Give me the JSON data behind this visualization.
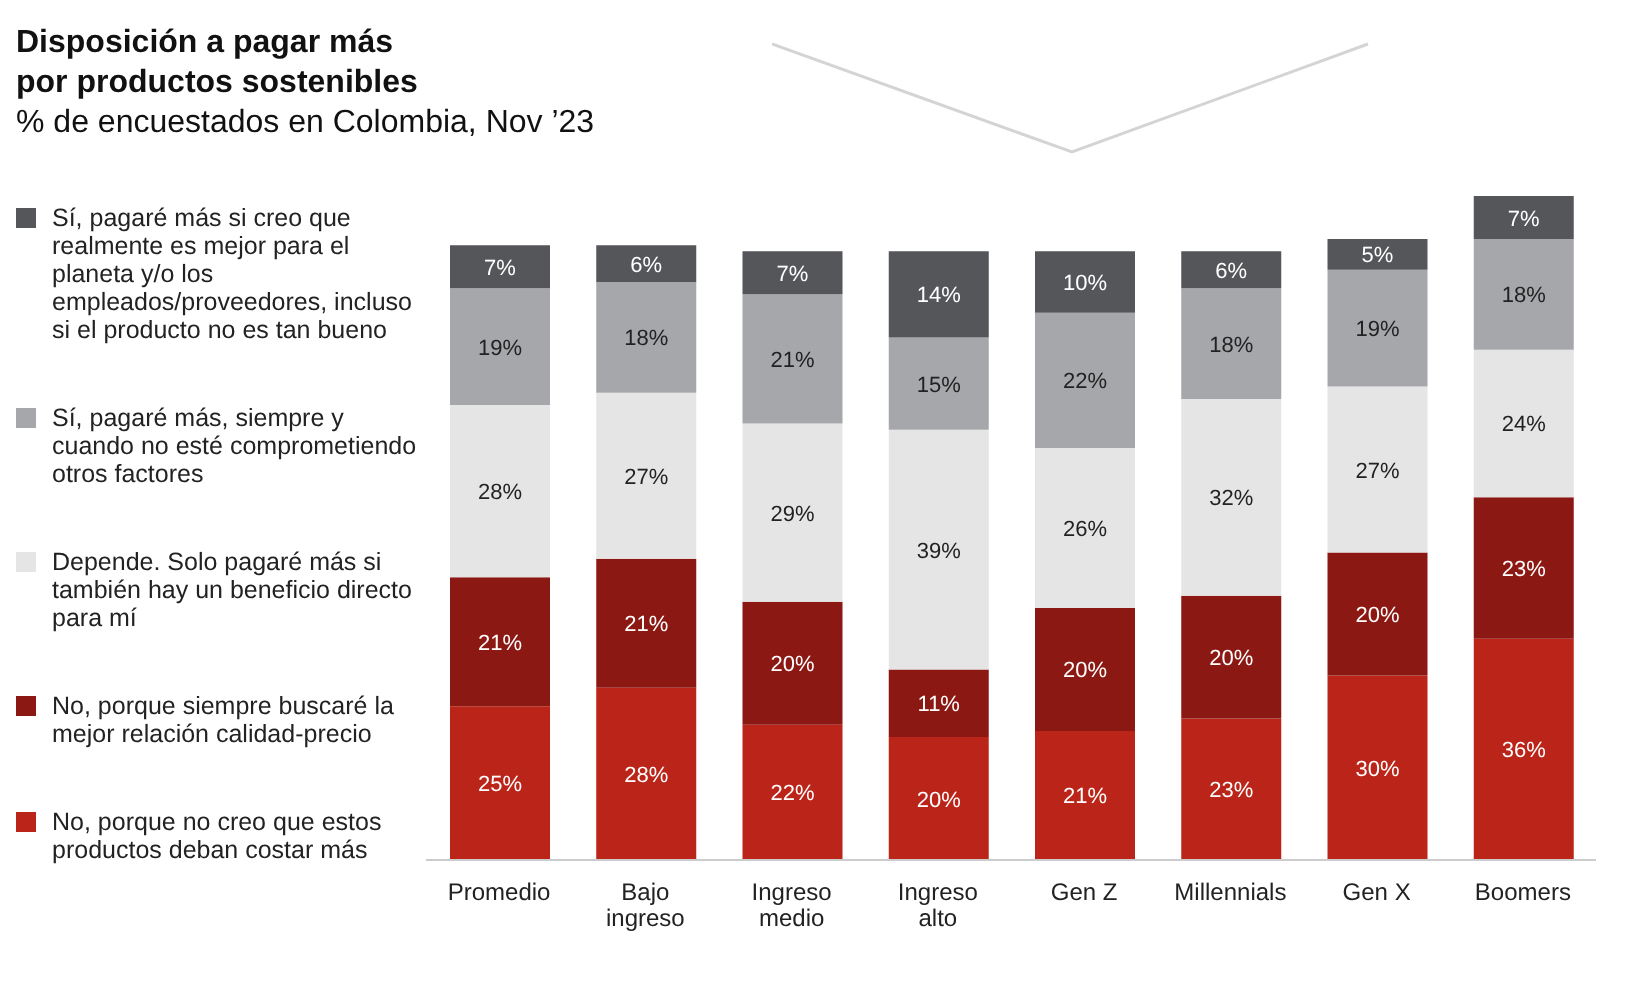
{
  "chart_data": {
    "type": "bar",
    "title": "Disposición a pagar más\npor productos sostenibles",
    "subtitle": "% de encuestados en Colombia, Nov ’23",
    "categories": [
      "Promedio",
      "Bajo ingreso",
      "Ingreso medio",
      "Ingreso alto",
      "Gen Z",
      "Millennials",
      "Gen X",
      "Boomers"
    ],
    "stacked": true,
    "legend": "left",
    "grid": false,
    "series": [
      {
        "name": "No, porque no creo que estos productos deban costar más",
        "color": "#bb2519",
        "values": [
          25,
          28,
          22,
          20,
          21,
          23,
          30,
          36
        ],
        "value_labels": [
          "25%",
          "28%",
          "22%",
          "20%",
          "21%",
          "23%",
          "30%",
          "36%"
        ]
      },
      {
        "name": "No, porque siempre buscaré la mejor relación calidad-precio",
        "color": "#8c1813",
        "values": [
          21,
          21,
          20,
          11,
          20,
          20,
          20,
          23
        ],
        "value_labels": [
          "21%",
          "21%",
          "20%",
          "11%",
          "20%",
          "20%",
          "20%",
          "23%"
        ]
      },
      {
        "name": "Depende. Solo pagaré más si también hay un beneficio directo para mí",
        "color": "#e5e5e5",
        "values": [
          28,
          27,
          29,
          39,
          26,
          32,
          27,
          24
        ],
        "value_labels": [
          "28%",
          "27%",
          "29%",
          "39%",
          "26%",
          "32%",
          "27%",
          "24%"
        ]
      },
      {
        "name": "Sí, pagaré más, siempre y cuando no esté comprometiendo otros factores",
        "color": "#a6a7ab",
        "values": [
          19,
          18,
          21,
          15,
          22,
          18,
          19,
          18
        ],
        "value_labels": [
          "19%",
          "18%",
          "21%",
          "15%",
          "22%",
          "18%",
          "19%",
          "18%"
        ]
      },
      {
        "name": "Sí, pagaré más si creo que realmente es mejor para el planeta y/o los empleados/proveedores, incluso si el producto no es tan bueno",
        "color": "#55565a",
        "values": [
          7,
          6,
          7,
          14,
          10,
          6,
          5,
          7
        ],
        "value_labels": [
          "7%",
          "6%",
          "7%",
          "14%",
          "10%",
          "6%",
          "5%",
          "7%"
        ]
      }
    ]
  }
}
